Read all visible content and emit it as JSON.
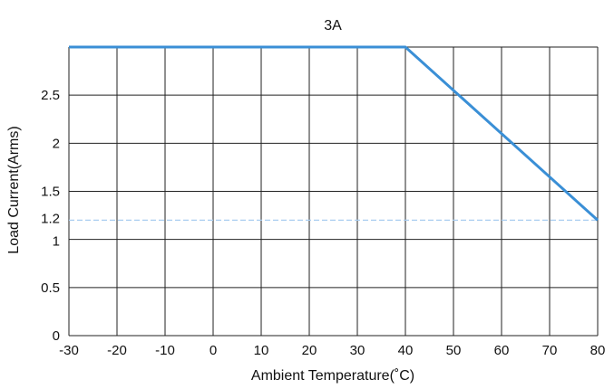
{
  "chart_data": {
    "type": "line",
    "title": "3A",
    "xlabel": "Ambient Temperature(˚C)",
    "ylabel": "Load Current(Arms)",
    "xlim": [
      -30,
      80
    ],
    "ylim": [
      0,
      3
    ],
    "xticks": [
      -30,
      -20,
      -10,
      0,
      10,
      20,
      30,
      40,
      50,
      60,
      70,
      80
    ],
    "yticks": [
      0,
      0.5,
      1,
      1.2,
      1.5,
      2,
      2.5
    ],
    "grid": true,
    "series": [
      {
        "x": [
          -30,
          40,
          80
        ],
        "y": [
          3,
          3,
          1.2
        ],
        "color": "#3a8fd6"
      }
    ],
    "reference_lines": [
      {
        "y": 1.2,
        "style": "dashed",
        "color": "#a9cdf0"
      }
    ],
    "colors": {
      "grid": "#222222",
      "line": "#3a8fd6",
      "dashed": "#a9cdf0"
    }
  }
}
